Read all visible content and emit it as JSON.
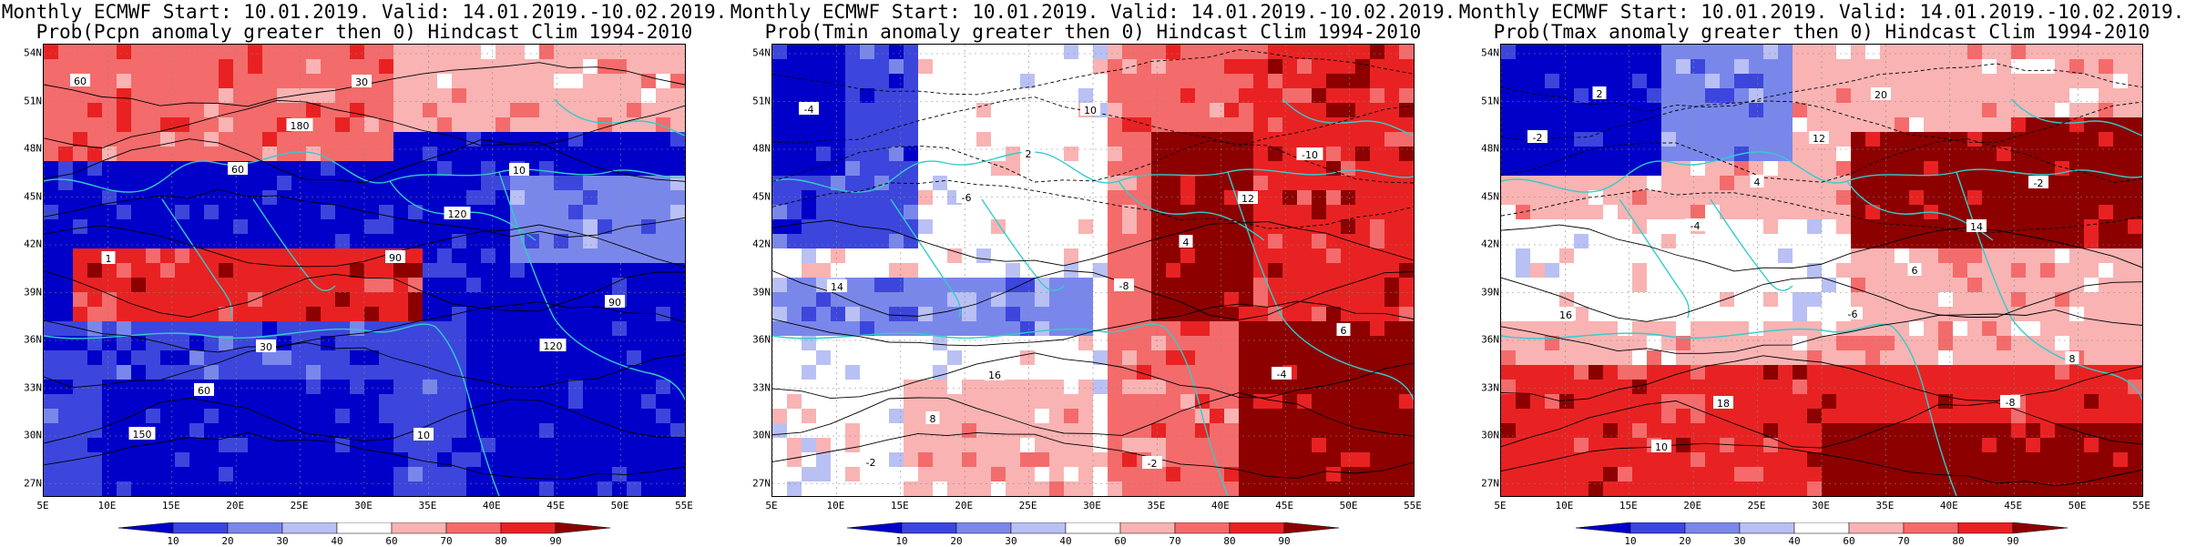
{
  "panels": [
    {
      "title_line1": "Monthly ECMWF Start: 10.01.2019. Valid: 14.01.2019.-10.02.2019.",
      "title_line2": "Prob(Pcpn anomaly greater then 0) Hindcast Clim 1994-2010",
      "contour_labels": [
        "60",
        "60",
        "90",
        "120",
        "150",
        "180",
        "120",
        "90",
        "60",
        "30",
        "10",
        "1",
        "30",
        "10"
      ]
    },
    {
      "title_line1": "Monthly ECMWF Start: 10.01.2019. Valid: 14.01.2019.-10.02.2019.",
      "title_line2": "Prob(Tmin anomaly greater then 0) Hindcast Clim 1994-2010",
      "contour_labels": [
        "-4",
        "-6",
        "-8",
        "-4",
        "-2",
        "2",
        "4",
        "6",
        "8",
        "10",
        "12",
        "14",
        "16",
        "-2",
        "-10"
      ]
    },
    {
      "title_line1": "Monthly ECMWF Start: 10.01.2019. Valid: 14.01.2019.-10.02.2019.",
      "title_line2": "Prob(Tmax anomaly greater then 0) Hindcast Clim 1994-2010",
      "contour_labels": [
        "-2",
        "-4",
        "-6",
        "-8",
        "2",
        "4",
        "6",
        "8",
        "10",
        "12",
        "14",
        "16",
        "18",
        "20",
        "-2"
      ]
    }
  ],
  "axes": {
    "lat_labels": [
      "54N",
      "51N",
      "48N",
      "45N",
      "42N",
      "39N",
      "36N",
      "33N",
      "30N",
      "27N"
    ],
    "lon_labels": [
      "5E",
      "10E",
      "15E",
      "20E",
      "25E",
      "30E",
      "35E",
      "40E",
      "45E",
      "50E",
      "55E"
    ]
  },
  "colorbar": {
    "labels": [
      "10",
      "20",
      "30",
      "40",
      "60",
      "70",
      "80",
      "90"
    ],
    "colors": [
      "#0000c8",
      "#3c46dc",
      "#7a87ea",
      "#b9c0f3",
      "#ffffff",
      "#f9b3b3",
      "#f46b6b",
      "#e82222",
      "#8c0000"
    ]
  },
  "map_colors": {
    "coast": "#33cccc",
    "contour": "#000000"
  }
}
